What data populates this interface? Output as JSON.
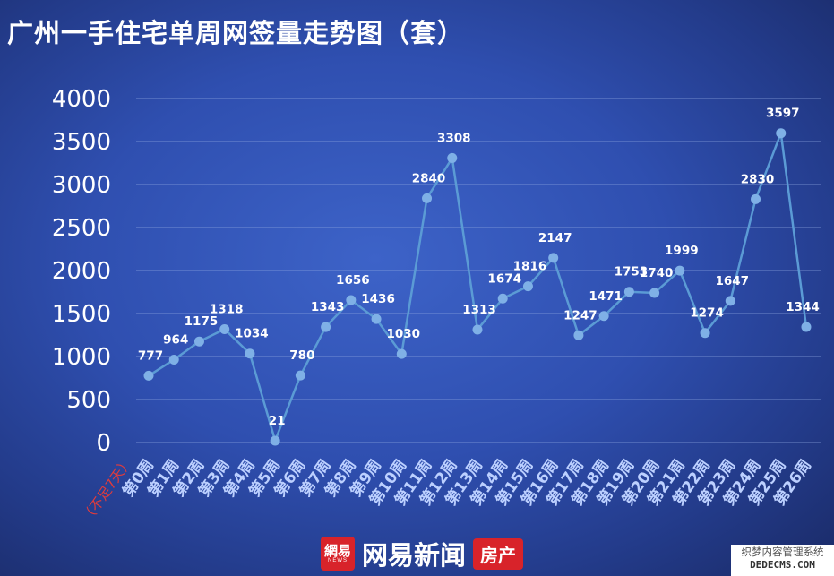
{
  "title": "广州一手住宅单周网签量走势图（套）",
  "chart_data": {
    "type": "line",
    "title": "广州一手住宅单周网签量走势图（套）",
    "xlabel": "",
    "ylabel": "",
    "ylim": [
      0,
      4000
    ],
    "yticks": [
      0,
      500,
      1000,
      1500,
      2000,
      2500,
      3000,
      3500,
      4000
    ],
    "grid": true,
    "categories": [
      "第0周",
      "第1周",
      "第2周",
      "第3周",
      "第4周",
      "第5周",
      "第6周",
      "第7周",
      "第8周",
      "第9周",
      "第10周",
      "第11周",
      "第12周",
      "第13周",
      "第14周",
      "第15周",
      "第16周",
      "第17周",
      "第18周",
      "第19周",
      "第20周",
      "第21周",
      "第22周",
      "第23周",
      "第24周",
      "第25周",
      "第26周"
    ],
    "series": [
      {
        "values": [
          777,
          964,
          1175,
          1318,
          1034,
          21,
          780,
          1343,
          1656,
          1436,
          1030,
          2840,
          3308,
          1313,
          1674,
          1816,
          2147,
          1247,
          1471,
          1753,
          1740,
          1999,
          1274,
          1647,
          2830,
          3597,
          1344
        ]
      }
    ],
    "annotations": [
      {
        "category": "第0周",
        "text": "（不足7天）"
      }
    ],
    "colors": {
      "line": "#5b9bd5",
      "marker": "#7fb0e6",
      "gridline": "#8fa6e0",
      "note": "#e23b3b"
    }
  },
  "footer": {
    "logo_glyph": "網易",
    "logo_en": "NEWS",
    "brand": "网易新闻",
    "tag": "房产"
  },
  "watermark": {
    "line1": "织梦内容管理系统",
    "line2": "DEDECMS.COM"
  }
}
